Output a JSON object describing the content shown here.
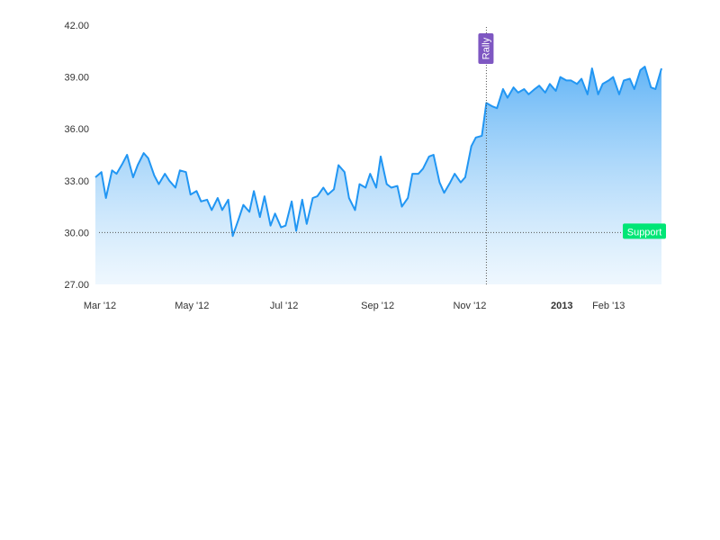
{
  "chart_data": {
    "type": "area",
    "title": "",
    "xlabel": "",
    "ylabel": "",
    "x_range": [
      "2012-03-01",
      "2013-03-11"
    ],
    "ylim": [
      27,
      42
    ],
    "y_ticks": [
      "27.00",
      "30.00",
      "33.00",
      "36.00",
      "39.00",
      "42.00"
    ],
    "x_ticks": [
      {
        "label": "Mar '12",
        "date": "2012-03-01",
        "bold": false
      },
      {
        "label": "May '12",
        "date": "2012-05-01",
        "bold": false
      },
      {
        "label": "Jul '12",
        "date": "2012-07-01",
        "bold": false
      },
      {
        "label": "Sep '12",
        "date": "2012-09-01",
        "bold": false
      },
      {
        "label": "Nov '12",
        "date": "2012-11-01",
        "bold": false
      },
      {
        "label": "2013",
        "date": "2013-01-01",
        "bold": true
      },
      {
        "label": "Feb '13",
        "date": "2013-02-01",
        "bold": false
      }
    ],
    "grid": false,
    "legend": "none",
    "colors": {
      "line": "#2196F3",
      "fill_top": "#64B5F6",
      "fill_bottom": "#E3F2FD",
      "support_label": "#00E676",
      "rally_label": "#7E57C2",
      "guide_line": "#555555"
    },
    "guides": {
      "support": {
        "label": "Support",
        "value": 30.0
      },
      "rally": {
        "label": "Rally",
        "date": "2012-11-15"
      }
    },
    "series": [
      {
        "x": [
          "2012-03-01",
          "2012-03-05",
          "2012-03-08",
          "2012-03-12",
          "2012-03-15",
          "2012-03-19",
          "2012-03-22",
          "2012-03-26",
          "2012-03-29",
          "2012-04-02",
          "2012-04-05",
          "2012-04-09",
          "2012-04-12",
          "2012-04-16",
          "2012-04-19",
          "2012-04-23",
          "2012-04-26",
          "2012-04-30",
          "2012-05-03",
          "2012-05-07",
          "2012-05-10",
          "2012-05-14",
          "2012-05-17",
          "2012-05-21",
          "2012-05-24",
          "2012-05-28",
          "2012-05-31",
          "2012-06-04",
          "2012-06-07",
          "2012-06-11",
          "2012-06-14",
          "2012-06-18",
          "2012-06-21",
          "2012-06-25",
          "2012-06-28",
          "2012-07-02",
          "2012-07-05",
          "2012-07-09",
          "2012-07-12",
          "2012-07-16",
          "2012-07-19",
          "2012-07-23",
          "2012-07-26",
          "2012-07-30",
          "2012-08-02",
          "2012-08-06",
          "2012-08-09",
          "2012-08-13",
          "2012-08-16",
          "2012-08-20",
          "2012-08-23",
          "2012-08-27",
          "2012-08-30",
          "2012-09-03",
          "2012-09-06",
          "2012-09-10",
          "2012-09-13",
          "2012-09-17",
          "2012-09-20",
          "2012-09-24",
          "2012-09-27",
          "2012-10-01",
          "2012-10-04",
          "2012-10-08",
          "2012-10-11",
          "2012-10-15",
          "2012-10-18",
          "2012-10-22",
          "2012-10-25",
          "2012-10-29",
          "2012-11-01",
          "2012-11-05",
          "2012-11-08",
          "2012-11-12",
          "2012-11-15",
          "2012-11-19",
          "2012-11-22",
          "2012-11-26",
          "2012-11-29",
          "2012-12-03",
          "2012-12-06",
          "2012-12-10",
          "2012-12-13",
          "2012-12-17",
          "2012-12-20",
          "2012-12-24",
          "2012-12-27",
          "2012-12-31",
          "2013-01-03",
          "2013-01-07",
          "2013-01-10",
          "2013-01-14",
          "2013-01-17",
          "2013-01-21",
          "2013-01-24",
          "2013-01-28",
          "2013-01-31",
          "2013-02-04",
          "2013-02-07",
          "2013-02-11",
          "2013-02-14",
          "2013-02-18",
          "2013-02-21",
          "2013-02-25",
          "2013-02-28",
          "2013-03-04",
          "2013-03-07",
          "2013-03-11"
        ],
        "y": [
          33.2,
          33.5,
          32.0,
          33.6,
          33.4,
          34.0,
          34.5,
          33.2,
          33.9,
          34.6,
          34.3,
          33.3,
          32.8,
          33.4,
          33.0,
          32.6,
          33.6,
          33.5,
          32.2,
          32.4,
          31.8,
          31.9,
          31.3,
          32.0,
          31.3,
          31.9,
          29.8,
          30.8,
          31.6,
          31.2,
          32.4,
          30.9,
          32.1,
          30.4,
          31.1,
          30.3,
          30.4,
          31.8,
          30.1,
          31.9,
          30.5,
          32.0,
          32.1,
          32.6,
          32.2,
          32.5,
          33.9,
          33.5,
          32.0,
          31.3,
          32.8,
          32.6,
          33.4,
          32.6,
          34.4,
          32.8,
          32.6,
          32.7,
          31.5,
          32.0,
          33.4,
          33.4,
          33.7,
          34.4,
          34.5,
          32.9,
          32.3,
          32.9,
          33.4,
          32.9,
          33.2,
          35.0,
          35.5,
          35.6,
          37.5,
          37.3,
          37.2,
          38.3,
          37.8,
          38.4,
          38.1,
          38.3,
          38.0,
          38.3,
          38.5,
          38.1,
          38.6,
          38.2,
          39.0,
          38.8,
          38.8,
          38.6,
          38.9,
          38.0,
          39.5,
          38.0,
          38.6,
          38.8,
          39.0,
          38.0,
          38.8,
          38.9,
          38.3,
          39.4,
          39.6,
          38.4,
          38.3,
          39.5
        ]
      }
    ]
  }
}
